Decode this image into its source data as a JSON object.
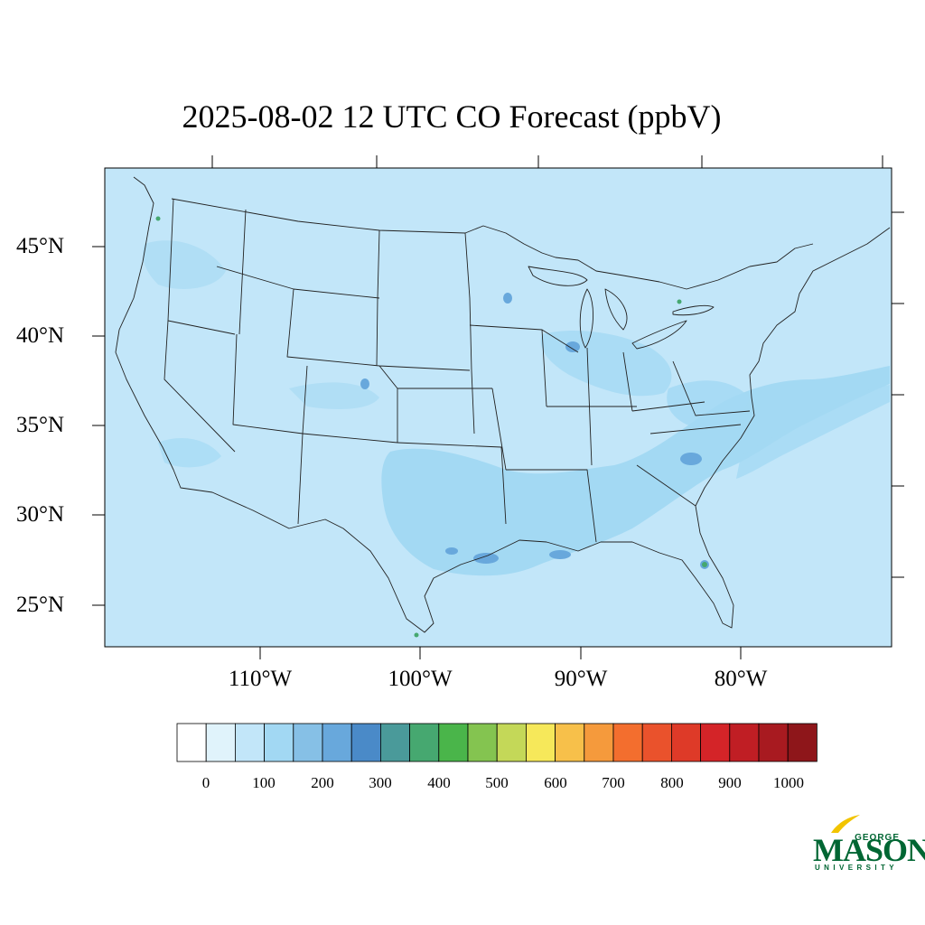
{
  "title": "2025-08-02 12 UTC CO Forecast (ppbV)",
  "map": {
    "background_color": "#c2e6f9",
    "latitude_labels": [
      "45°N",
      "40°N",
      "35°N",
      "30°N",
      "25°N"
    ],
    "longitude_labels": [
      "110°W",
      "100°W",
      "90°W",
      "80°W"
    ]
  },
  "colorbar": {
    "colors": [
      "#ffffff",
      "#e0f3fb",
      "#c2e6f9",
      "#a2d8f3",
      "#86c0e6",
      "#68a8dc",
      "#4a8ac8",
      "#4a9a9a",
      "#46a870",
      "#4ab54a",
      "#84c450",
      "#c4d858",
      "#f6e85a",
      "#f7c04a",
      "#f59a3c",
      "#f36e2e",
      "#ea522c",
      "#de3a28",
      "#d42428",
      "#c01e24",
      "#a81a20",
      "#8e161a"
    ],
    "labels": [
      "0",
      "100",
      "200",
      "300",
      "400",
      "500",
      "600",
      "700",
      "800",
      "900",
      "1000"
    ]
  },
  "logo": {
    "line1": "GEORGE",
    "line2": "MASON",
    "line3": "UNIVERSITY",
    "colors": {
      "green": "#006633",
      "gold": "#f2c400"
    }
  }
}
